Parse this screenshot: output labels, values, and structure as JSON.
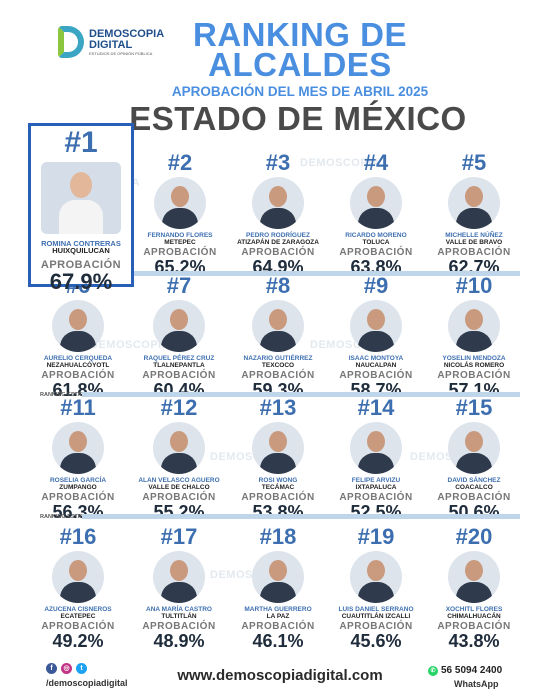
{
  "brand": {
    "name": "DEMOSCOPIA DIGITAL",
    "line1": "DEMOSCOPIA",
    "line2": "DIGITAL",
    "tagline": "ESTUDIOS DE OPINIÓN PÚBLICA",
    "color": "#4a8ee0"
  },
  "header": {
    "title_line1": "RANKING DE",
    "title_line2": "ALCALDES",
    "subtitle": "APROBACIÓN DEL MES DE ABRIL 2025",
    "state": "ESTADO DE MÉXICO"
  },
  "aprob_label": "APROBACIÓN",
  "section_label": "RANKING ESTATAL",
  "ranking": [
    {
      "rank": "#1",
      "name": "ROMINA CONTRERAS",
      "municipality": "HUIXQUILUCAN",
      "approval": "67.9%"
    },
    {
      "rank": "#2",
      "name": "FERNANDO FLORES",
      "municipality": "METEPEC",
      "approval": "65.2%"
    },
    {
      "rank": "#3",
      "name": "PEDRO RODRÍGUEZ",
      "municipality": "ATIZAPÁN DE ZARAGOZA",
      "approval": "64.9%"
    },
    {
      "rank": "#4",
      "name": "RICARDO MORENO",
      "municipality": "TOLUCA",
      "approval": "63.8%"
    },
    {
      "rank": "#5",
      "name": "MICHELLE NÚÑEZ",
      "municipality": "VALLE DE BRAVO",
      "approval": "62.7%"
    },
    {
      "rank": "#6",
      "name": "AURELIO CERQUEDA",
      "municipality": "NEZAHUALCÓYOTL",
      "approval": "61.8%"
    },
    {
      "rank": "#7",
      "name": "RAQUEL PÉREZ CRUZ",
      "municipality": "TLALNEPANTLA",
      "approval": "60.4%"
    },
    {
      "rank": "#8",
      "name": "NAZARIO GUTIÉRREZ",
      "municipality": "TEXCOCO",
      "approval": "59.3%"
    },
    {
      "rank": "#9",
      "name": "ISAAC MONTOYA",
      "municipality": "NAUCALPAN",
      "approval": "58.7%"
    },
    {
      "rank": "#10",
      "name": "YOSELIN MENDOZA",
      "municipality": "NICOLÁS ROMERO",
      "approval": "57.1%"
    },
    {
      "rank": "#11",
      "name": "ROSELIA GARCÍA",
      "municipality": "ZUMPANGO",
      "approval": "56.3%"
    },
    {
      "rank": "#12",
      "name": "ALAN VELASCO AGUERO",
      "municipality": "VALLE DE CHALCO",
      "approval": "55.2%"
    },
    {
      "rank": "#13",
      "name": "ROSI WONG",
      "municipality": "TECÁMAC",
      "approval": "53.8%"
    },
    {
      "rank": "#14",
      "name": "FELIPE ARVIZU",
      "municipality": "IXTAPALUCA",
      "approval": "52.5%"
    },
    {
      "rank": "#15",
      "name": "DAVID SÁNCHEZ",
      "municipality": "COACALCO",
      "approval": "50.6%"
    },
    {
      "rank": "#16",
      "name": "AZUCENA CISNEROS",
      "municipality": "ECATEPEC",
      "approval": "49.2%"
    },
    {
      "rank": "#17",
      "name": "ANA MARÍA CASTRO",
      "municipality": "TULTITLÁN",
      "approval": "48.9%"
    },
    {
      "rank": "#18",
      "name": "MARTHA GUERRERO",
      "municipality": "LA PAZ",
      "approval": "46.1%"
    },
    {
      "rank": "#19",
      "name": "LUIS DANIEL SERRANO",
      "municipality": "CUAUTITLÁN IZCALLI",
      "approval": "45.6%"
    },
    {
      "rank": "#20",
      "name": "XOCHITL FLORES",
      "municipality": "CHIMALHUACÁN",
      "approval": "43.8%"
    }
  ],
  "footer": {
    "handle": "/demoscopiadigital",
    "website": "www.demoscopiadigital.com",
    "phone": "56 5094 2400",
    "whatsapp": "WhatsApp",
    "social_icons": [
      "facebook-icon",
      "instagram-icon",
      "twitter-icon"
    ]
  }
}
